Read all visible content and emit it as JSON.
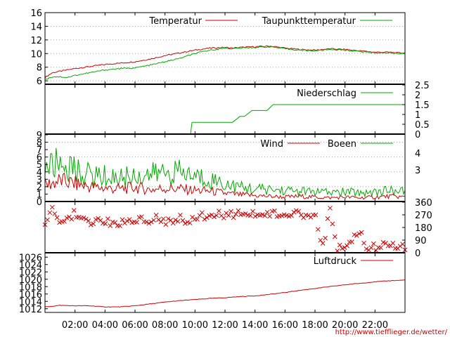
{
  "chart_data": [
    {
      "type": "line",
      "panel": "temperature",
      "ylim": [
        5.5,
        16
      ],
      "yticks": [
        6,
        8,
        10,
        12,
        14,
        16
      ],
      "grid": true,
      "legend_position": "top",
      "series": [
        {
          "name": "Temperatur",
          "color": "#cc0000",
          "x": [
            0,
            0.5,
            1,
            1.5,
            2,
            3,
            4,
            5,
            6,
            7,
            8,
            9,
            10,
            11,
            12,
            12.5,
            13,
            14,
            15,
            16,
            17,
            18,
            19,
            20,
            21,
            22,
            23,
            23.5,
            24
          ],
          "values": [
            6.5,
            7.2,
            7.4,
            7.6,
            7.8,
            8.1,
            8.4,
            8.6,
            8.8,
            9.2,
            9.7,
            10.1,
            10.5,
            10.8,
            10.9,
            10.8,
            10.9,
            11.0,
            11.1,
            10.8,
            10.6,
            10.5,
            10.7,
            10.6,
            10.4,
            10.2,
            10.2,
            10.1,
            10.1
          ]
        },
        {
          "name": "Taupunkttemperatur",
          "color": "#00aa00",
          "x": [
            0,
            0.5,
            1,
            1.5,
            2,
            3,
            4,
            5,
            6,
            7,
            8,
            9,
            10,
            11,
            12,
            12.5,
            13,
            14,
            15,
            16,
            17,
            18,
            19,
            20,
            21,
            22,
            23,
            23.5,
            24
          ],
          "values": [
            6.2,
            6.6,
            6.6,
            6.5,
            6.8,
            7.2,
            7.6,
            7.8,
            7.9,
            8.3,
            8.8,
            9.3,
            10.0,
            10.5,
            10.8,
            10.7,
            10.8,
            10.9,
            11.0,
            10.7,
            10.5,
            10.4,
            10.6,
            10.5,
            10.3,
            10.1,
            10.1,
            10.0,
            10.0
          ]
        }
      ]
    },
    {
      "type": "line",
      "panel": "precipitation",
      "ylim": [
        0,
        2.5
      ],
      "yticks": [
        "0",
        "0.5",
        "1",
        "1.5",
        "2",
        "2.5"
      ],
      "legend_position": "top-right",
      "series": [
        {
          "name": "Niederschlag",
          "color": "#00aa00",
          "x": [
            9.7,
            9.8,
            12.5,
            13.0,
            13.3,
            13.8,
            14.8,
            15.2,
            24
          ],
          "values": [
            0,
            0.6,
            0.6,
            0.9,
            0.9,
            1.2,
            1.2,
            1.5,
            1.5
          ]
        }
      ]
    },
    {
      "type": "line",
      "panel": "wind",
      "ylim": [
        0,
        9
      ],
      "yticks": [
        0,
        1,
        2,
        3,
        4,
        5,
        6,
        7,
        8,
        9
      ],
      "right_labels": [
        "4",
        "3"
      ],
      "grid": true,
      "legend_position": "top-right",
      "series": [
        {
          "name": "Wind",
          "color": "#cc0000",
          "x": [
            0,
            1,
            2,
            3,
            4,
            5,
            6,
            7,
            8,
            9,
            10,
            11,
            12,
            13,
            14,
            15,
            16,
            17,
            18,
            19,
            20,
            21,
            22,
            23,
            24
          ],
          "values": [
            2.2,
            2.8,
            2.4,
            2.0,
            1.8,
            1.7,
            1.9,
            1.6,
            1.8,
            1.7,
            1.5,
            1.4,
            1.1,
            0.9,
            0.8,
            0.7,
            0.6,
            0.7,
            0.6,
            0.5,
            0.6,
            0.5,
            0.6,
            0.7,
            0.6
          ]
        },
        {
          "name": "Boeen",
          "color": "#00aa00",
          "x": [
            0,
            1,
            2,
            3,
            4,
            5,
            6,
            7,
            8,
            9,
            10,
            11,
            12,
            13,
            14,
            15,
            16,
            17,
            18,
            19,
            20,
            21,
            22,
            23,
            24
          ],
          "values": [
            4.5,
            5.2,
            4.2,
            3.6,
            3.4,
            3.2,
            3.5,
            3.6,
            4.0,
            3.9,
            3.4,
            3.0,
            2.4,
            1.9,
            1.7,
            1.6,
            1.5,
            1.4,
            1.3,
            1.2,
            1.3,
            1.2,
            1.3,
            1.5,
            1.3
          ]
        }
      ]
    },
    {
      "type": "scatter",
      "panel": "wind_direction",
      "ylim": [
        0,
        360
      ],
      "yticks": [
        0,
        90,
        180,
        270,
        360
      ],
      "marker": "x",
      "color": "#cc0000",
      "x": [
        0,
        0.5,
        1,
        1.5,
        2,
        2.5,
        3,
        3.5,
        4,
        4.5,
        5,
        5.5,
        6,
        6.5,
        7,
        7.5,
        8,
        8.5,
        9,
        9.5,
        10,
        10.5,
        11,
        11.5,
        12,
        12.5,
        13,
        13.5,
        14,
        14.5,
        15,
        15.5,
        16,
        16.5,
        17,
        17.5,
        18,
        18.5,
        19,
        19.5,
        20,
        20.5,
        21,
        21.5,
        22,
        22.5,
        23,
        23.5,
        24
      ],
      "values": [
        220,
        300,
        200,
        250,
        280,
        230,
        190,
        250,
        210,
        220,
        200,
        230,
        220,
        240,
        220,
        260,
        230,
        200,
        240,
        230,
        250,
        260,
        240,
        270,
        260,
        280,
        270,
        250,
        280,
        270,
        280,
        270,
        290,
        280,
        270,
        260,
        280,
        30,
        300,
        20,
        60,
        100,
        150,
        40,
        40,
        50,
        40,
        60,
        40
      ]
    },
    {
      "type": "line",
      "panel": "pressure",
      "ylim": [
        1011,
        1027
      ],
      "yticks": [
        1012,
        1014,
        1016,
        1018,
        1020,
        1022,
        1024,
        1026
      ],
      "legend_position": "top-right",
      "series": [
        {
          "name": "Luftdruck",
          "color": "#cc0000",
          "x": [
            0,
            1,
            2,
            3,
            4,
            5,
            6,
            7,
            8,
            9,
            10,
            11,
            12,
            13,
            14,
            15,
            16,
            17,
            18,
            19,
            20,
            21,
            22,
            23,
            24
          ],
          "values": [
            1012.5,
            1012.9,
            1012.8,
            1012.8,
            1012.5,
            1012.5,
            1012.8,
            1013.3,
            1013.8,
            1014.2,
            1014.5,
            1014.8,
            1015.0,
            1015.3,
            1015.5,
            1015.9,
            1016.4,
            1017.0,
            1017.5,
            1018.0,
            1018.5,
            1018.9,
            1019.3,
            1019.6,
            1019.8
          ]
        }
      ]
    }
  ],
  "x_axis": {
    "xlim": [
      0,
      24
    ],
    "tick_labels": [
      "02:00",
      "04:00",
      "06:00",
      "08:00",
      "10:00",
      "12:00",
      "14:00",
      "16:00",
      "18:00",
      "20:00",
      "22:00"
    ],
    "tick_hours": [
      2,
      4,
      6,
      8,
      10,
      12,
      14,
      16,
      18,
      20,
      22
    ]
  },
  "footer": {
    "url": "http://www.tiefflieger.de/wetter/"
  }
}
